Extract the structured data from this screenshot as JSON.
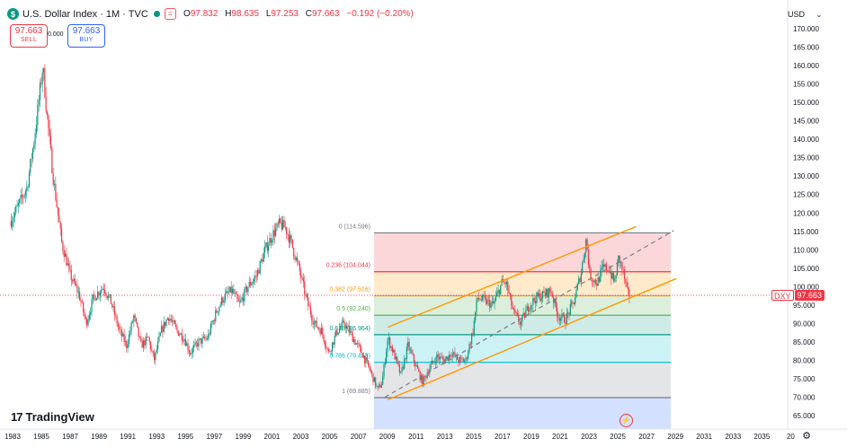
{
  "header": {
    "logo_glyph": "$",
    "title": "U.S. Dollar Index · 1M · TVC",
    "equal_button": "=",
    "ohlc": [
      {
        "key": "O",
        "value": "97.832"
      },
      {
        "key": "H",
        "value": "98.635"
      },
      {
        "key": "L",
        "value": "97.253"
      },
      {
        "key": "C",
        "value": "97.663"
      }
    ],
    "change": "−0.192 (−0.20%)"
  },
  "trade": {
    "sell_price": "97.663",
    "sell_label": "SELL",
    "spread": "0.000",
    "buy_price": "97.663",
    "buy_label": "BUY"
  },
  "currency": {
    "label": "USD",
    "icon": "chevron-down-icon"
  },
  "price_axis": {
    "labels": [
      "170.000",
      "165.000",
      "160.000",
      "155.000",
      "150.000",
      "145.000",
      "140.000",
      "135.000",
      "130.000",
      "125.000",
      "120.000",
      "115.000",
      "110.000",
      "105.000",
      "100.000",
      "95.000",
      "90.000",
      "85.000",
      "80.000",
      "75.000",
      "70.000",
      "65.000"
    ]
  },
  "price_tag": {
    "symbol": "DXY",
    "value": "97.663"
  },
  "time_axis": {
    "labels": [
      "1983",
      "1985",
      "1987",
      "1989",
      "1991",
      "1993",
      "1995",
      "1997",
      "1999",
      "2001",
      "2003",
      "2005",
      "2007",
      "2009",
      "2011",
      "2013",
      "2015",
      "2017",
      "2019",
      "2021",
      "2023",
      "2025",
      "2027",
      "2029",
      "2031",
      "2033",
      "2035",
      "20"
    ]
  },
  "fibonacci": {
    "levels": [
      {
        "label": "0 (114.596)",
        "price": 114.596,
        "line": "#787b86",
        "fill": "rgba(242,54,69,0.2)"
      },
      {
        "label": "0.236 (104.044)",
        "price": 104.044,
        "line": "#f23645",
        "fill": "rgba(255,152,0,0.2)"
      },
      {
        "label": "0.382 (97.516)",
        "price": 97.516,
        "line": "#ff9800",
        "fill": "rgba(76,175,80,0.2)"
      },
      {
        "label": "0.5 (92.240)",
        "price": 92.24,
        "line": "#4caf50",
        "fill": "rgba(8,153,129,0.2)"
      },
      {
        "label": "0.618 (86.964)",
        "price": 86.964,
        "line": "#089981",
        "fill": "rgba(0,188,212,0.2)"
      },
      {
        "label": "0.786 (79.453)",
        "price": 79.453,
        "line": "#00bcd4",
        "fill": "rgba(120,123,134,0.2)"
      },
      {
        "label": "1 (69.885)",
        "price": 69.885,
        "line": "#787b86",
        "fill": "rgba(41,98,255,0.2)"
      }
    ]
  },
  "last_price": 97.663,
  "branding": {
    "logo_text": "TradingView",
    "logo_mark": "17"
  },
  "icons": [
    "bolt-icon",
    "gear-icon"
  ],
  "colors": {
    "up": "#089981",
    "down": "#f23645",
    "channel": "#ff9800",
    "trend": "#787b86",
    "last_price": "#f23645"
  }
}
